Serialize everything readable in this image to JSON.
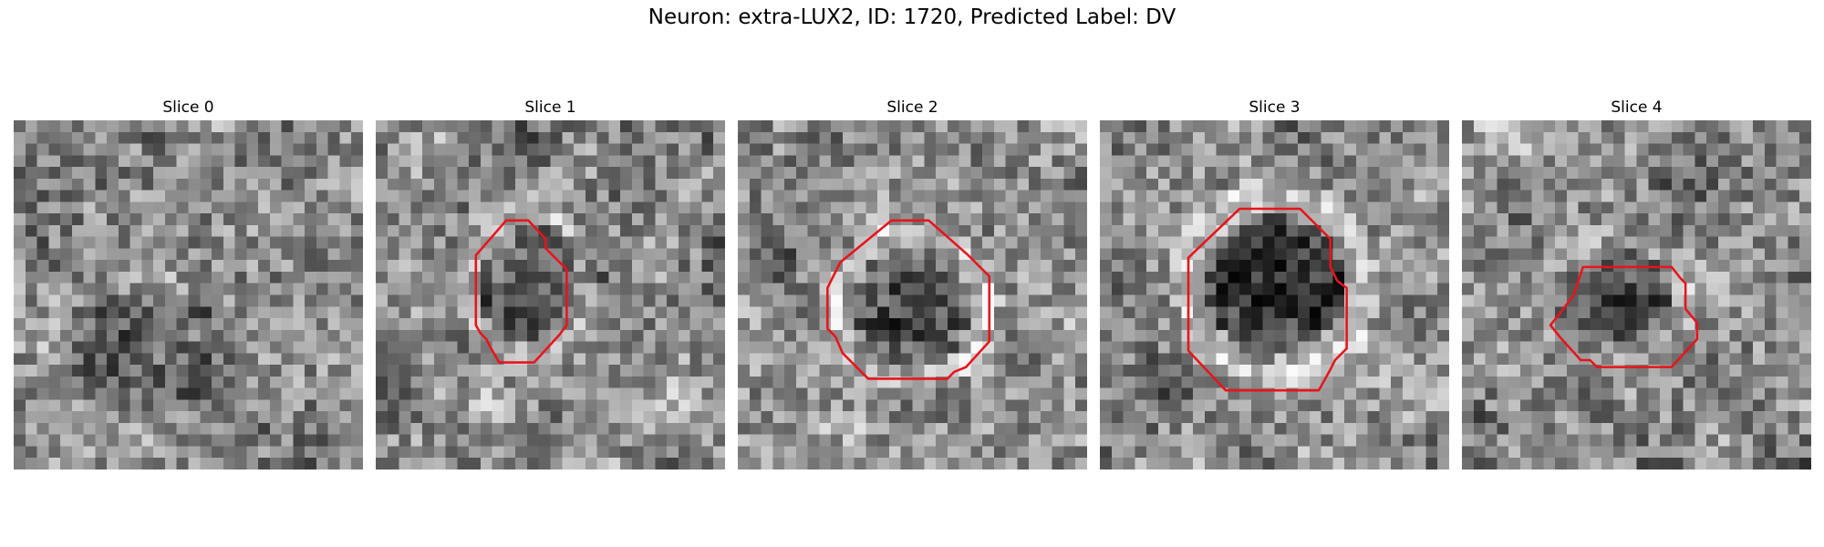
{
  "figure": {
    "title": "Neuron: extra-LUX2, ID: 1720, Predicted Label: DV"
  },
  "contour_color": "#e8141a",
  "panels": [
    {
      "title": "Slice 0",
      "has_contour": false
    },
    {
      "title": "Slice 1",
      "has_contour": true
    },
    {
      "title": "Slice 2",
      "has_contour": true
    },
    {
      "title": "Slice 3",
      "has_contour": true
    },
    {
      "title": "Slice 4",
      "has_contour": true
    }
  ]
}
